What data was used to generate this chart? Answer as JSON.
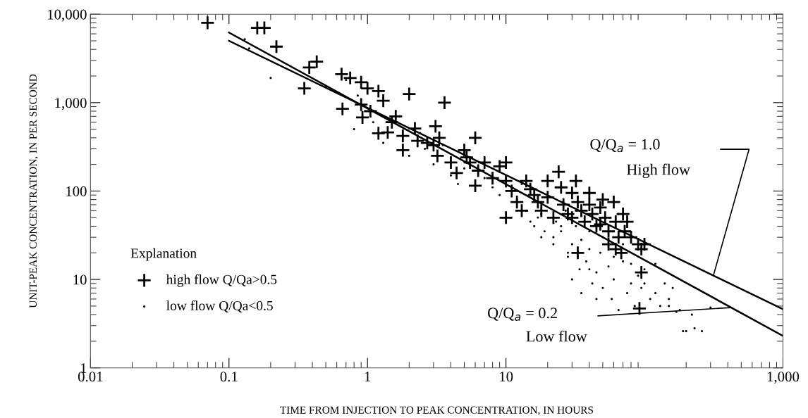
{
  "chart_data": {
    "type": "scatter",
    "xlabel": "TIME FROM INJECTION TO PEAK CONCENTRATION, IN HOURS",
    "ylabel": "UNIT-PEAK CONCENTRATION, IN PER SECOND",
    "legend_title": "Explanation",
    "log": "xy",
    "grid": false,
    "legend": "lower left",
    "xlim": [
      0.01,
      1000
    ],
    "ylim": [
      1,
      10000
    ],
    "xticks": [
      0.01,
      0.1,
      1,
      10,
      {
        "value": 1000,
        "label": "1,000"
      }
    ],
    "yticks": [
      1,
      10,
      100,
      {
        "value": 1000,
        "label": "1,000"
      },
      {
        "value": 10000,
        "label": "10,000"
      }
    ],
    "series": [
      {
        "name": "high flow Q/Qa>0.5",
        "marker": "cross",
        "color": "#000000",
        "x": [
          0.07,
          0.16,
          0.18,
          0.22,
          0.35,
          0.38,
          0.43,
          0.65,
          0.66,
          0.75,
          0.9,
          0.9,
          0.92,
          1.0,
          1.05,
          1.2,
          1.3,
          1.2,
          1.4,
          1.5,
          1.6,
          1.8,
          1.8,
          2.0,
          2.2,
          2.3,
          2.7,
          3.0,
          3.1,
          3.3,
          3.6,
          3.2,
          4.0,
          4.4,
          5.0,
          5.2,
          5.5,
          6.0,
          6.3,
          6.0,
          7.0,
          8.0,
          9.0,
          10,
          10,
          10,
          11,
          12,
          13,
          14,
          15,
          16,
          17,
          18,
          20,
          20,
          22,
          24,
          25,
          26,
          28,
          30,
          30,
          32,
          33,
          35,
          37,
          40,
          40,
          42,
          45,
          48,
          50,
          52,
          55,
          60,
          62,
          65,
          68,
          70,
          72,
          75,
          80,
          90,
          95,
          100,
          92,
          33,
          48,
          55,
          62,
          95
        ],
        "values": [
          8000,
          7000,
          7000,
          4300,
          1450,
          2500,
          2900,
          2100,
          850,
          1900,
          1700,
          950,
          680,
          1450,
          800,
          1350,
          1050,
          450,
          460,
          600,
          700,
          420,
          290,
          1250,
          510,
          370,
          350,
          330,
          540,
          400,
          1000,
          250,
          210,
          160,
          290,
          240,
          210,
          400,
          170,
          115,
          210,
          140,
          190,
          210,
          130,
          50,
          100,
          75,
          60,
          130,
          105,
          90,
          75,
          60,
          130,
          85,
          50,
          165,
          110,
          70,
          55,
          95,
          50,
          130,
          75,
          60,
          45,
          95,
          70,
          55,
          40,
          65,
          80,
          50,
          35,
          75,
          45,
          30,
          20,
          55,
          35,
          45,
          30,
          25,
          22,
          25,
          4.7,
          20,
          42,
          25,
          22,
          12
        ]
      },
      {
        "name": "low flow Q/Qa<0.5",
        "marker": "circle",
        "color": "#000000",
        "x": [
          0.13,
          0.14,
          0.2,
          0.5,
          0.7,
          0.8,
          0.85,
          1.1,
          1.3,
          1.7,
          2.0,
          2.4,
          2.6,
          3.0,
          3.5,
          4.0,
          4.5,
          5.0,
          7.0,
          8.0,
          9.0,
          10,
          12,
          13,
          14,
          15,
          16,
          17,
          18,
          19,
          20,
          22,
          23,
          25,
          27,
          28,
          30,
          32,
          34,
          35,
          38,
          40,
          42,
          45,
          48,
          50,
          55,
          58,
          60,
          65,
          70,
          75,
          80,
          85,
          90,
          95,
          100,
          110,
          120,
          130,
          140,
          150,
          160,
          170,
          180,
          190,
          200,
          220,
          230,
          260,
          30,
          35,
          40,
          45,
          50,
          60,
          70,
          80,
          100,
          120,
          150,
          25,
          28,
          22,
          18,
          40,
          65,
          300
        ],
        "values": [
          5200,
          4100,
          1900,
          1500,
          1800,
          500,
          1200,
          600,
          350,
          700,
          250,
          450,
          300,
          200,
          330,
          150,
          120,
          180,
          140,
          110,
          90,
          140,
          80,
          120,
          60,
          45,
          40,
          50,
          30,
          35,
          120,
          25,
          45,
          35,
          60,
          18,
          25,
          40,
          13,
          28,
          16,
          22,
          9,
          12,
          20,
          8,
          14,
          6,
          10,
          4.5,
          16,
          7,
          9,
          5,
          11,
          8,
          13,
          6,
          15,
          5,
          9,
          6,
          8,
          4.3,
          4.5,
          2.6,
          2.6,
          4.0,
          2.8,
          2.6,
          10,
          7,
          13,
          6,
          30,
          18,
          25,
          15,
          9,
          7,
          5,
          40,
          20,
          30,
          55,
          35,
          55,
          4.8
        ]
      },
      {
        "type": "line",
        "color": "#000000",
        "x": [
          0.1,
          1000
        ],
        "values": [
          5000,
          4.6
        ]
      },
      {
        "type": "line",
        "color": "#000000",
        "x": [
          0.1,
          1000
        ],
        "values": [
          6200,
          2.3
        ]
      }
    ],
    "annotations": [
      "Q/Q$_{a}$ = 1.0",
      "High flow",
      "Q/Q$_{a}$ = 0.2",
      {
        "text": "Low flow",
        "x": 415,
        "y": 4.8
      }
    ]
  }
}
